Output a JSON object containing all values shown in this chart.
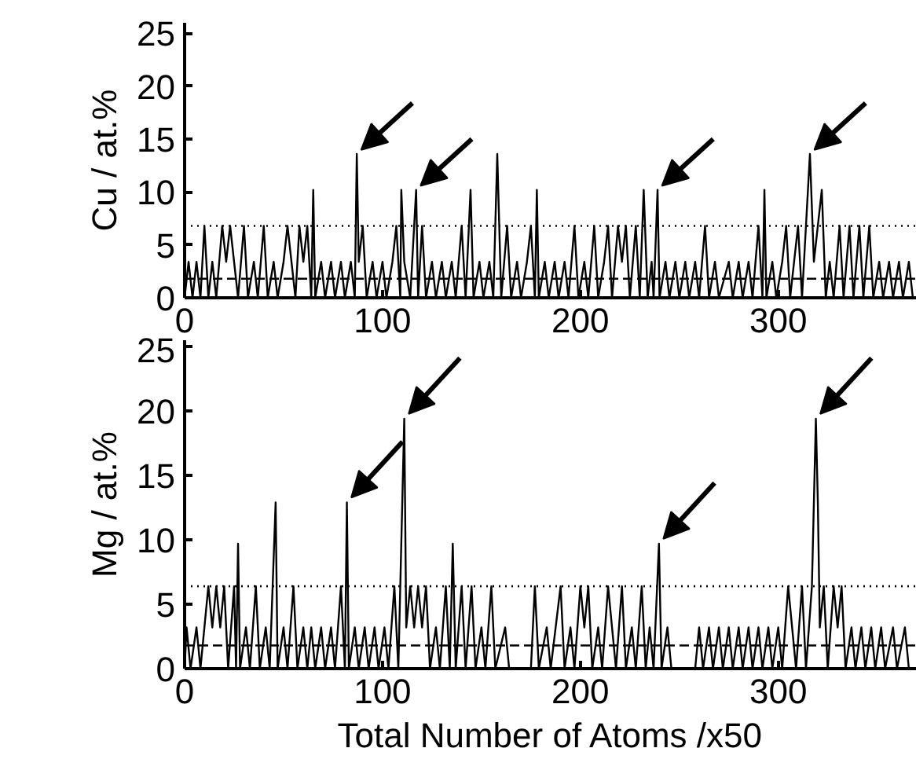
{
  "chart_data": [
    {
      "type": "line",
      "ylabel": "Cu / at.%",
      "xlim": [
        0,
        370
      ],
      "ylim": [
        0,
        26
      ],
      "xticks": [
        0,
        100,
        200,
        300
      ],
      "yticks": [
        0,
        5,
        10,
        15,
        20,
        25
      ],
      "grid": false,
      "marker": "none",
      "line_style": "solid",
      "ref_lines": [
        {
          "axis": "y",
          "value": 6.8,
          "line_style": "dotted",
          "color": "#000000"
        },
        {
          "axis": "y",
          "value": 1.8,
          "line_style": "dashed",
          "color": "#000000"
        }
      ],
      "series": [
        {
          "color": "#000000",
          "x": [
            0,
            2,
            4,
            6,
            8,
            10,
            12,
            14,
            16,
            19,
            21,
            23,
            25,
            27,
            30,
            32,
            35,
            37,
            40,
            42,
            45,
            47,
            50,
            52,
            54,
            56,
            58,
            60,
            62,
            64,
            65,
            66,
            69,
            71,
            74,
            76,
            79,
            81,
            84,
            86,
            87,
            88,
            90,
            92,
            95,
            97,
            100,
            102,
            105,
            107,
            109,
            109.5,
            111,
            114,
            117,
            118,
            120,
            122,
            125,
            127,
            130,
            132,
            135,
            137,
            140,
            142,
            144.5,
            146,
            149,
            151,
            154,
            156,
            158,
            160,
            163,
            165,
            168,
            170,
            173,
            175,
            177,
            178,
            179,
            182,
            184,
            187,
            189,
            192,
            194,
            197,
            199,
            202,
            204,
            207,
            209,
            212,
            214,
            216,
            219,
            221,
            223,
            225,
            228,
            230,
            232,
            234,
            236,
            237,
            239,
            240,
            243,
            245,
            248,
            250,
            253,
            255,
            258,
            260,
            263,
            265,
            268,
            270,
            275,
            277,
            280,
            282,
            285,
            287,
            290,
            292,
            293,
            294,
            297,
            299,
            302,
            304,
            306,
            308,
            310,
            312,
            314,
            316,
            318,
            320,
            322,
            324,
            326,
            328,
            331,
            333,
            336,
            338,
            341,
            343,
            346,
            348,
            351,
            353,
            356,
            358,
            361,
            363,
            366,
            368
          ],
          "values": [
            0,
            3.4,
            0,
            3.4,
            0,
            6.8,
            0,
            3.4,
            0,
            6.8,
            3.4,
            6.8,
            3.4,
            0,
            6.8,
            0,
            3.4,
            0,
            6.8,
            0,
            3.4,
            0,
            3.4,
            6.8,
            3.4,
            0,
            6.8,
            3.4,
            6.8,
            0,
            10.2,
            0,
            3.4,
            0,
            3.4,
            0,
            3.4,
            0,
            3.4,
            0,
            13.6,
            3.4,
            6.8,
            0,
            3.4,
            0,
            3.4,
            0,
            3.4,
            6.8,
            0,
            10.2,
            3.4,
            0,
            10.2,
            0,
            6.8,
            0,
            3.4,
            0,
            3.4,
            0,
            3.4,
            0,
            6.8,
            0,
            10.2,
            0,
            3.4,
            0,
            3.4,
            0,
            13.6,
            0,
            6.8,
            0,
            3.4,
            0,
            3.4,
            6.8,
            0,
            10.2,
            0,
            3.4,
            0,
            3.4,
            0,
            3.4,
            0,
            6.8,
            0,
            3.4,
            0,
            6.8,
            0,
            3.4,
            6.8,
            0,
            6.8,
            3.4,
            6.8,
            0,
            6.8,
            0,
            10.2,
            0,
            3.4,
            0,
            10.2,
            0,
            3.4,
            0,
            3.4,
            0,
            3.4,
            0,
            3.4,
            0,
            6.8,
            0,
            3.4,
            0,
            3.4,
            0,
            3.4,
            0,
            3.4,
            0,
            6.8,
            0,
            10.2,
            0,
            3.4,
            0,
            3.4,
            6.8,
            0,
            3.4,
            6.8,
            0,
            6.8,
            13.6,
            3.4,
            6.8,
            10.2,
            0,
            3.4,
            0,
            6.8,
            0,
            6.8,
            0,
            6.8,
            0,
            6.8,
            0,
            3.4,
            0,
            3.4,
            0,
            3.4,
            0,
            3.4,
            0
          ]
        }
      ]
    },
    {
      "type": "line",
      "xlabel": "Total Number of Atoms /x50",
      "ylabel": "Mg / at.%",
      "xlim": [
        0,
        370
      ],
      "ylim": [
        0,
        25.5
      ],
      "xticks": [
        0,
        100,
        200,
        300
      ],
      "yticks": [
        0,
        5,
        10,
        15,
        20,
        25
      ],
      "grid": false,
      "marker": "none",
      "line_style": "solid",
      "ref_lines": [
        {
          "axis": "y",
          "value": 6.4,
          "line_style": "dotted",
          "color": "#000000"
        },
        {
          "axis": "y",
          "value": 1.8,
          "line_style": "dashed",
          "color": "#000000"
        }
      ],
      "series": [
        {
          "color": "#000000",
          "x": [
            0,
            1,
            3,
            6,
            8,
            12,
            14,
            16,
            18,
            20,
            22,
            25,
            26,
            27,
            28,
            31,
            33,
            36,
            38,
            41,
            43,
            46,
            47,
            50,
            52,
            55,
            57,
            60,
            62,
            64,
            66,
            69,
            71,
            74,
            76,
            79,
            81,
            82,
            83,
            86,
            88,
            91,
            93,
            96,
            98,
            101,
            103,
            106,
            108,
            111,
            112,
            114,
            116,
            118,
            120,
            122,
            124,
            127,
            129,
            132,
            134,
            135.5,
            137,
            140,
            142,
            145,
            147,
            150,
            152,
            155,
            157,
            162,
            164,
            175,
            177,
            179,
            183,
            185,
            190,
            192,
            195,
            197,
            200,
            202,
            204,
            206,
            209,
            211,
            214,
            216,
            218,
            221,
            223,
            226,
            228,
            231,
            233,
            235,
            237,
            239.7,
            241,
            244,
            246,
            258,
            260,
            262,
            265,
            267,
            270,
            272,
            275,
            277,
            280,
            282,
            285,
            287,
            290,
            292,
            295,
            297,
            300,
            302,
            305,
            307,
            309,
            312,
            314,
            317,
            319,
            320,
            321,
            323,
            325,
            328,
            330,
            332,
            334,
            337,
            339,
            342,
            344,
            347,
            349,
            352,
            354,
            358,
            360,
            364,
            366
          ],
          "values": [
            0,
            3.2,
            0,
            3.2,
            0,
            6.4,
            3.2,
            6.4,
            3.2,
            6.4,
            0,
            6.4,
            0,
            9.7,
            0,
            3.2,
            0,
            6.4,
            0,
            3.2,
            0,
            12.9,
            0,
            3.2,
            0,
            6.4,
            0,
            3.2,
            0,
            3.2,
            0,
            3.2,
            0,
            3.2,
            0,
            6.4,
            0,
            12.9,
            0,
            3.2,
            0,
            3.2,
            0,
            3.2,
            0,
            3.2,
            0,
            6.4,
            0,
            19.4,
            3.2,
            6.4,
            3.2,
            6.4,
            3.2,
            6.4,
            0,
            3.2,
            0,
            6.4,
            0,
            9.7,
            0,
            6.4,
            0,
            6.4,
            0,
            3.2,
            0,
            6.4,
            0,
            3.2,
            0,
            0,
            6.4,
            0,
            3.2,
            0,
            6.4,
            0,
            3.2,
            0,
            6.4,
            3.2,
            6.4,
            0,
            3.2,
            0,
            6.4,
            3.2,
            0,
            6.4,
            0,
            3.2,
            0,
            6.4,
            0,
            3.2,
            0,
            9.7,
            0,
            3.2,
            0,
            0,
            3.2,
            0,
            3.2,
            0,
            3.2,
            0,
            3.2,
            0,
            3.2,
            0,
            3.2,
            0,
            3.2,
            0,
            3.2,
            0,
            3.2,
            0,
            6.4,
            3.2,
            0,
            6.4,
            0,
            6.4,
            19.4,
            12.9,
            3.2,
            6.4,
            0,
            6.4,
            3.2,
            6.4,
            0,
            3.2,
            0,
            3.2,
            0,
            3.2,
            0,
            3.2,
            0,
            3.2,
            0,
            3.2,
            0
          ]
        }
      ]
    }
  ]
}
